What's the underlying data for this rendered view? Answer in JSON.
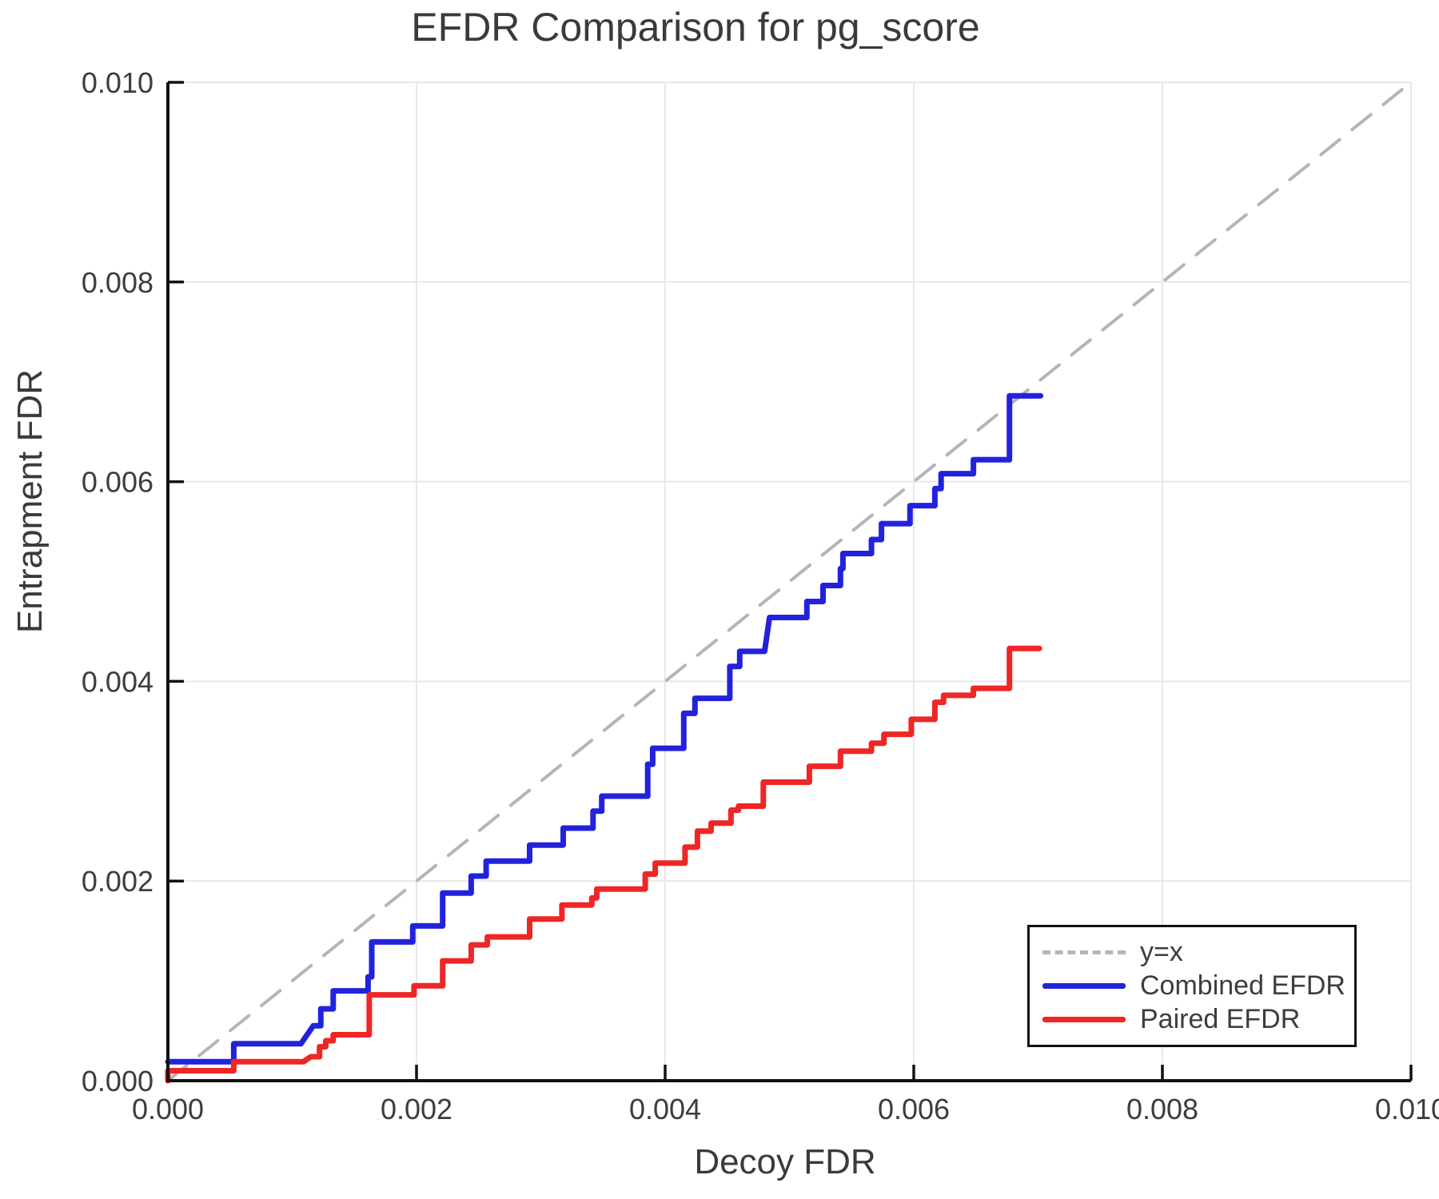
{
  "figure": {
    "background": "#ffffff"
  },
  "chart_data": {
    "type": "line",
    "subtype": "step",
    "title": "EFDR Comparison for pg_score",
    "xlabel": "Decoy FDR",
    "ylabel": "Entrapment FDR",
    "xlim": [
      0.0,
      0.01
    ],
    "ylim": [
      0.0,
      0.01
    ],
    "xticks": [
      0.0,
      0.002,
      0.004,
      0.006,
      0.008,
      0.01
    ],
    "yticks": [
      0.0,
      0.002,
      0.004,
      0.006,
      0.008,
      0.01
    ],
    "xtick_labels": [
      "0.000",
      "0.002",
      "0.004",
      "0.006",
      "0.008",
      "0.010"
    ],
    "ytick_labels": [
      "0.000",
      "0.002",
      "0.004",
      "0.006",
      "0.008",
      "0.010"
    ],
    "grid": true,
    "legend_position": "lower right",
    "colors": {
      "combined": "#2222dd",
      "paired": "#ee2626",
      "reference": "#b5b5b5",
      "grid": "#e8e8e8",
      "spine": "#111111",
      "tick_text": "#3d3d3d"
    },
    "series": [
      {
        "name": "y=x",
        "style": "dashed",
        "color": "#b5b5b5",
        "points": [
          [
            0.0,
            0.0
          ],
          [
            0.01,
            0.01
          ]
        ]
      },
      {
        "name": "Combined EFDR",
        "style": "solid",
        "color": "#2222dd",
        "points": [
          [
            0.0,
            0.00019
          ],
          [
            0.00053,
            0.00019
          ],
          [
            0.00053,
            0.00037
          ],
          [
            0.00107,
            0.00037
          ],
          [
            0.00117,
            0.00055
          ],
          [
            0.00123,
            0.00055
          ],
          [
            0.00123,
            0.00072
          ],
          [
            0.00133,
            0.00072
          ],
          [
            0.00133,
            0.0009
          ],
          [
            0.00161,
            0.0009
          ],
          [
            0.00161,
            0.00104
          ],
          [
            0.00164,
            0.00104
          ],
          [
            0.00164,
            0.00139
          ],
          [
            0.00197,
            0.00139
          ],
          [
            0.00197,
            0.00155
          ],
          [
            0.00221,
            0.00155
          ],
          [
            0.00221,
            0.00188
          ],
          [
            0.00244,
            0.00188
          ],
          [
            0.00244,
            0.00205
          ],
          [
            0.00256,
            0.00205
          ],
          [
            0.00256,
            0.0022
          ],
          [
            0.00291,
            0.0022
          ],
          [
            0.00291,
            0.00236
          ],
          [
            0.00318,
            0.00236
          ],
          [
            0.00318,
            0.00253
          ],
          [
            0.00342,
            0.00253
          ],
          [
            0.00342,
            0.0027
          ],
          [
            0.00349,
            0.0027
          ],
          [
            0.00349,
            0.00285
          ],
          [
            0.00386,
            0.00285
          ],
          [
            0.00386,
            0.00317
          ],
          [
            0.0039,
            0.00317
          ],
          [
            0.0039,
            0.00333
          ],
          [
            0.00415,
            0.00333
          ],
          [
            0.00415,
            0.00368
          ],
          [
            0.00424,
            0.00368
          ],
          [
            0.00424,
            0.00383
          ],
          [
            0.00452,
            0.00383
          ],
          [
            0.00452,
            0.00415
          ],
          [
            0.0046,
            0.00415
          ],
          [
            0.0046,
            0.0043
          ],
          [
            0.0048,
            0.0043
          ],
          [
            0.00484,
            0.00464
          ],
          [
            0.00514,
            0.00464
          ],
          [
            0.00514,
            0.0048
          ],
          [
            0.00527,
            0.0048
          ],
          [
            0.00527,
            0.00496
          ],
          [
            0.00541,
            0.00496
          ],
          [
            0.00541,
            0.00513
          ],
          [
            0.00543,
            0.00513
          ],
          [
            0.00543,
            0.00528
          ],
          [
            0.00566,
            0.00528
          ],
          [
            0.00566,
            0.00542
          ],
          [
            0.00574,
            0.00542
          ],
          [
            0.00574,
            0.00558
          ],
          [
            0.00597,
            0.00558
          ],
          [
            0.00597,
            0.00576
          ],
          [
            0.00617,
            0.00576
          ],
          [
            0.00617,
            0.00593
          ],
          [
            0.00622,
            0.00593
          ],
          [
            0.00622,
            0.00608
          ],
          [
            0.00648,
            0.00608
          ],
          [
            0.00648,
            0.00622
          ],
          [
            0.00677,
            0.00622
          ],
          [
            0.00677,
            0.00686
          ],
          [
            0.00702,
            0.00686
          ]
        ]
      },
      {
        "name": "Paired EFDR",
        "style": "solid",
        "color": "#ee2626",
        "points": [
          [
            0.0,
            0.0
          ],
          [
            0.0,
            0.0001
          ],
          [
            0.00053,
            0.0001
          ],
          [
            0.00053,
            0.00019
          ],
          [
            0.00109,
            0.00019
          ],
          [
            0.00115,
            0.00024
          ],
          [
            0.00122,
            0.00024
          ],
          [
            0.00122,
            0.00034
          ],
          [
            0.00127,
            0.00034
          ],
          [
            0.00127,
            0.0004
          ],
          [
            0.00133,
            0.0004
          ],
          [
            0.00133,
            0.00046
          ],
          [
            0.00162,
            0.00046
          ],
          [
            0.00162,
            0.00086
          ],
          [
            0.00198,
            0.00086
          ],
          [
            0.00198,
            0.00095
          ],
          [
            0.00221,
            0.00095
          ],
          [
            0.00221,
            0.0012
          ],
          [
            0.00244,
            0.0012
          ],
          [
            0.00244,
            0.00136
          ],
          [
            0.00257,
            0.00136
          ],
          [
            0.00257,
            0.00144
          ],
          [
            0.00291,
            0.00144
          ],
          [
            0.00291,
            0.00162
          ],
          [
            0.00317,
            0.00162
          ],
          [
            0.00317,
            0.00176
          ],
          [
            0.00341,
            0.00176
          ],
          [
            0.00341,
            0.00183
          ],
          [
            0.00345,
            0.00183
          ],
          [
            0.00345,
            0.00192
          ],
          [
            0.00384,
            0.00192
          ],
          [
            0.00384,
            0.00207
          ],
          [
            0.00392,
            0.00207
          ],
          [
            0.00392,
            0.00218
          ],
          [
            0.00416,
            0.00218
          ],
          [
            0.00416,
            0.00234
          ],
          [
            0.00426,
            0.00234
          ],
          [
            0.00426,
            0.0025
          ],
          [
            0.00437,
            0.0025
          ],
          [
            0.00437,
            0.00258
          ],
          [
            0.00453,
            0.00258
          ],
          [
            0.00453,
            0.00271
          ],
          [
            0.00459,
            0.00271
          ],
          [
            0.00459,
            0.00275
          ],
          [
            0.00479,
            0.00275
          ],
          [
            0.00479,
            0.00299
          ],
          [
            0.00516,
            0.00299
          ],
          [
            0.00516,
            0.00315
          ],
          [
            0.00541,
            0.00315
          ],
          [
            0.00541,
            0.0033
          ],
          [
            0.00566,
            0.0033
          ],
          [
            0.00566,
            0.00338
          ],
          [
            0.00576,
            0.00338
          ],
          [
            0.00576,
            0.00347
          ],
          [
            0.00598,
            0.00347
          ],
          [
            0.00598,
            0.00362
          ],
          [
            0.00617,
            0.00362
          ],
          [
            0.00617,
            0.00379
          ],
          [
            0.00624,
            0.00379
          ],
          [
            0.00624,
            0.00386
          ],
          [
            0.00648,
            0.00386
          ],
          [
            0.00648,
            0.00393
          ],
          [
            0.00677,
            0.00393
          ],
          [
            0.00677,
            0.00433
          ],
          [
            0.00701,
            0.00433
          ]
        ]
      }
    ]
  }
}
